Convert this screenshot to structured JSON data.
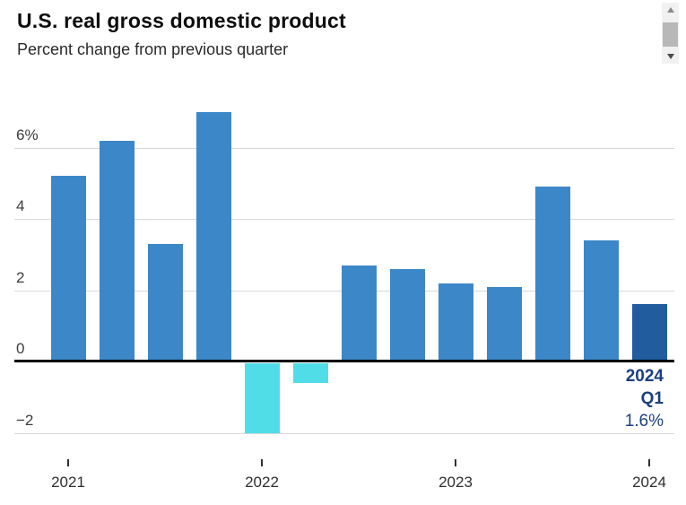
{
  "header": {
    "title": "U.S. real gross domestic product",
    "subtitle": "Percent change from previous quarter"
  },
  "scrollbar": {
    "up_icon": "triangle-up",
    "down_icon": "triangle-down",
    "track_color": "#f1f1f1",
    "thumb_color": "#b8b8b8"
  },
  "chart_data": {
    "type": "bar",
    "title": "U.S. real gross domestic product",
    "subtitle": "Percent change from previous quarter",
    "unit": "percent",
    "categories": [
      "2021 Q1",
      "2021 Q2",
      "2021 Q3",
      "2021 Q4",
      "2022 Q1",
      "2022 Q2",
      "2022 Q3",
      "2022 Q4",
      "2023 Q1",
      "2023 Q2",
      "2023 Q3",
      "2023 Q4",
      "2024 Q1"
    ],
    "values": [
      5.2,
      6.2,
      3.3,
      7.0,
      -2.0,
      -0.6,
      2.7,
      2.6,
      2.2,
      2.1,
      4.9,
      3.4,
      1.6
    ],
    "yticks": [
      {
        "value": 6,
        "label": "6%"
      },
      {
        "value": 4,
        "label": "4"
      },
      {
        "value": 2,
        "label": "2"
      },
      {
        "value": 0,
        "label": "0"
      },
      {
        "value": -2,
        "label": "−2"
      }
    ],
    "xticks": [
      {
        "label": "2021",
        "bar_index": 0
      },
      {
        "label": "2022",
        "bar_index": 4
      },
      {
        "label": "2023",
        "bar_index": 8
      },
      {
        "label": "2024",
        "bar_index": 12
      }
    ],
    "ylim": [
      -2.7,
      7.9
    ],
    "grid": true,
    "legend": null,
    "highlight_index": 12,
    "colors": {
      "positive": "#3c87c7",
      "negative": "#51dde8",
      "highlight": "#205c9e",
      "axis": "#000000",
      "gridline": "#d8d8d8",
      "ytick_label": "#3d3d3d",
      "xtick_label": "#2e2e2e",
      "annotation": "#1b4080"
    },
    "annotation": {
      "lines": [
        {
          "text": "2024",
          "bold": true
        },
        {
          "text": "Q1",
          "bold": true
        },
        {
          "text": "1.6%",
          "bold": false
        }
      ]
    }
  }
}
